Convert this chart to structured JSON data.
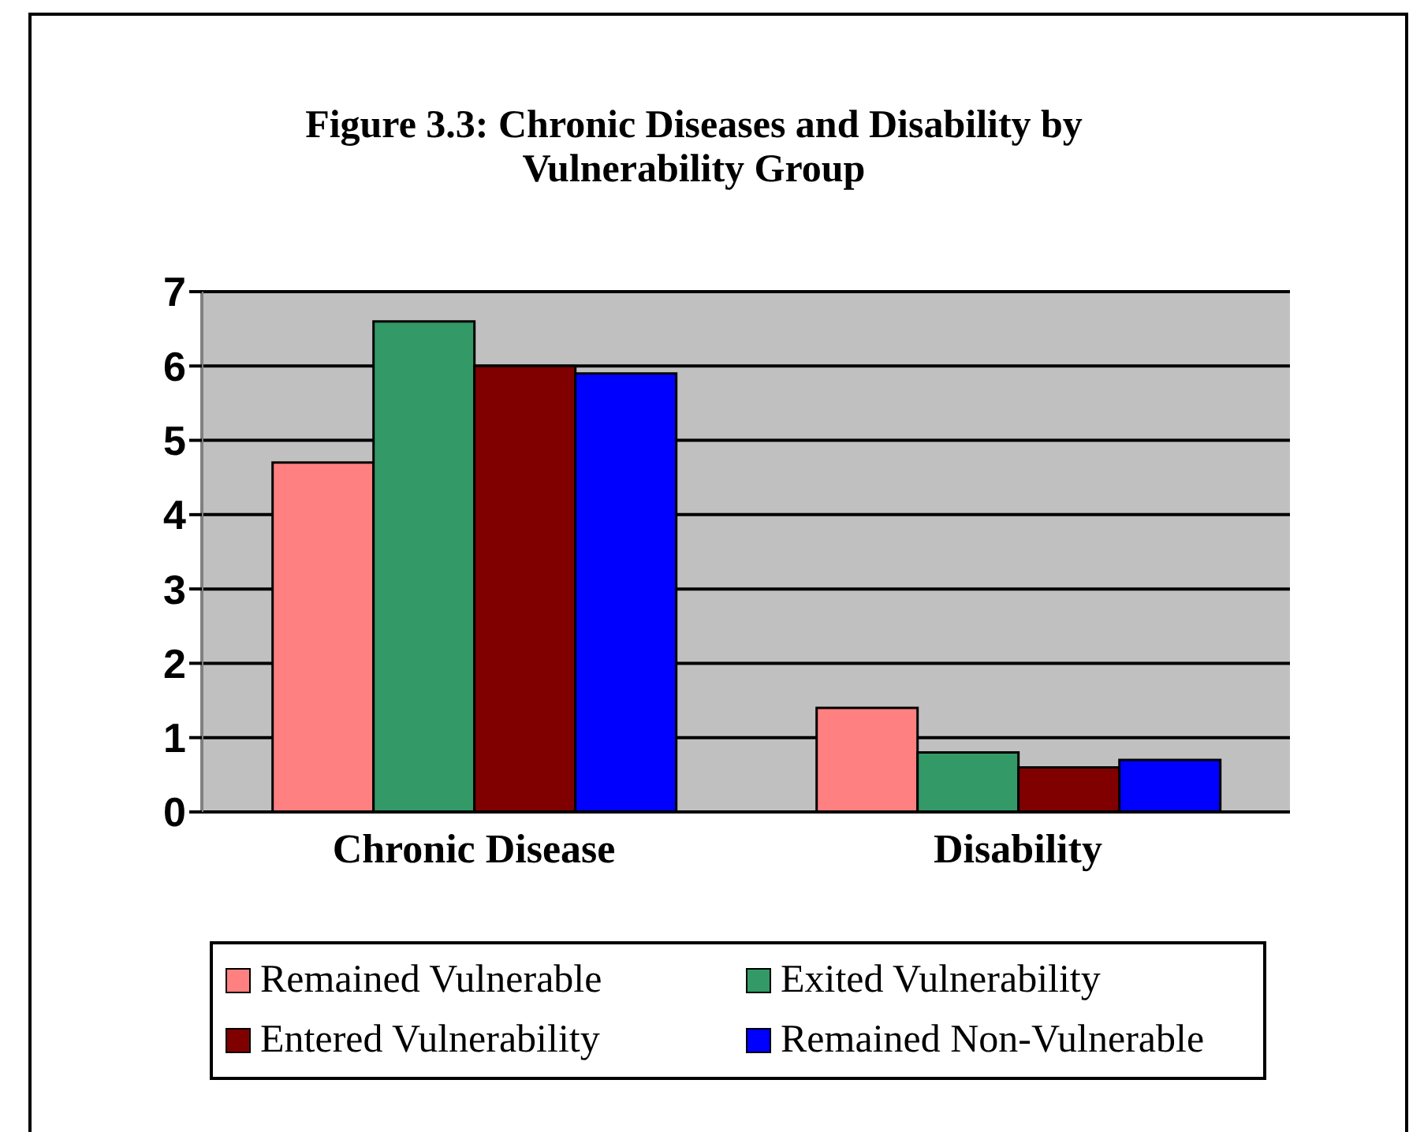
{
  "chart_data": {
    "type": "bar",
    "title": "Figure 3.3: Chronic Diseases and Disability by Vulnerability Group",
    "categories": [
      "Chronic Disease",
      "Disability"
    ],
    "series": [
      {
        "name": "Remained Vulnerable",
        "color": "#ff8080",
        "values": [
          4.7,
          1.4
        ]
      },
      {
        "name": "Exited Vulnerability",
        "color": "#339966",
        "values": [
          6.6,
          0.8
        ]
      },
      {
        "name": "Entered Vulnerability",
        "color": "#800000",
        "values": [
          6.0,
          0.6
        ]
      },
      {
        "name": "Remained Non-Vulnerable",
        "color": "#0000ff",
        "values": [
          5.9,
          0.7
        ]
      }
    ],
    "ylim": [
      0,
      7
    ],
    "yticks": [
      0,
      1,
      2,
      3,
      4,
      5,
      6,
      7
    ],
    "grid": "y",
    "legend": "bottom"
  }
}
